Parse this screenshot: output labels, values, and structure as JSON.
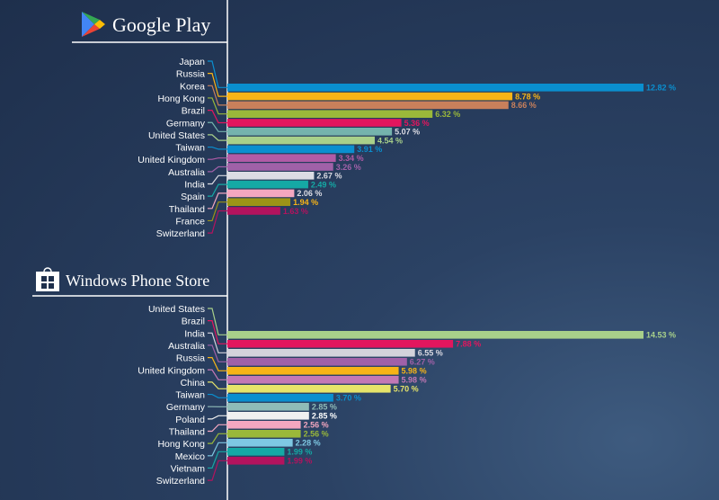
{
  "chart_data": [
    {
      "type": "bar",
      "title": "Google Play",
      "value_suffix": " %",
      "categories": [
        "Japan",
        "Russia",
        "Korea",
        "Hong Kong",
        "Brazil",
        "Germany",
        "United States",
        "Taiwan",
        "United Kingdom",
        "Australia",
        "India",
        "Spain",
        "Thailand",
        "France",
        "Switzerland"
      ],
      "values": [
        12.82,
        8.78,
        8.66,
        6.32,
        5.36,
        5.07,
        4.54,
        3.91,
        3.34,
        3.26,
        2.67,
        2.49,
        2.06,
        1.94,
        1.63
      ],
      "labels": [
        "12.82",
        "8.78",
        "8.66",
        "6.32",
        "5.36",
        "5.07",
        "4.54",
        "3.91",
        "3.34",
        "3.26",
        "2.67",
        "2.49",
        "2.06",
        "1.94",
        "1.63"
      ],
      "colors": [
        "#0a8fcf",
        "#f7b417",
        "#c9805b",
        "#9ab83a",
        "#e2165e",
        "#75b3ad",
        "#a8d08a",
        "#0a8fcf",
        "#b15ba6",
        "#a061a8",
        "#dcdce4",
        "#15a9a5",
        "#f4a7c0",
        "#9c9417",
        "#b3135e"
      ],
      "label_colors": [
        "#0a8fcf",
        "#f7b417",
        "#c9805b",
        "#9ab83a",
        "#e2165e",
        "#dcdce4",
        "#a8d08a",
        "#0a8fcf",
        "#b15ba6",
        "#a061a8",
        "#dcdce4",
        "#15a9a5",
        "#dcdce4",
        "#f7b417",
        "#b3135e"
      ]
    },
    {
      "type": "bar",
      "title": "Windows Phone Store",
      "value_suffix": " %",
      "categories": [
        "United States",
        "Brazil",
        "India",
        "Australia",
        "Russia",
        "United Kingdom",
        "China",
        "Taiwan",
        "Germany",
        "Poland",
        "Thailand",
        "Hong Kong",
        "Mexico",
        "Vietnam",
        "Switzerland"
      ],
      "values": [
        14.53,
        7.88,
        6.55,
        6.27,
        5.98,
        5.98,
        5.7,
        3.7,
        2.85,
        2.85,
        2.56,
        2.56,
        2.28,
        1.99,
        1.99
      ],
      "labels": [
        "14.53",
        "7.88",
        "6.55",
        "6.27",
        "5.98",
        "5.98",
        "5.70",
        "3.70",
        "2.85",
        "2.85",
        "2.56",
        "2.56",
        "2.28",
        "1.99",
        "1.99"
      ],
      "colors": [
        "#a8d08a",
        "#e2165e",
        "#d3d3db",
        "#a061a8",
        "#f7b417",
        "#c378b5",
        "#e6e46a",
        "#0a8fcf",
        "#8fbcb8",
        "#f0f0f0",
        "#f4a7c0",
        "#9ab83a",
        "#7ec8e3",
        "#15a9a5",
        "#b3135e"
      ],
      "label_colors": [
        "#a8d08a",
        "#e2165e",
        "#dcdce4",
        "#a061a8",
        "#f7b417",
        "#c378b5",
        "#e6e46a",
        "#0a8fcf",
        "#8fbcb8",
        "#ffffff",
        "#f4a7c0",
        "#9ab83a",
        "#7ec8e3",
        "#15a9a5",
        "#b3135e"
      ]
    }
  ]
}
